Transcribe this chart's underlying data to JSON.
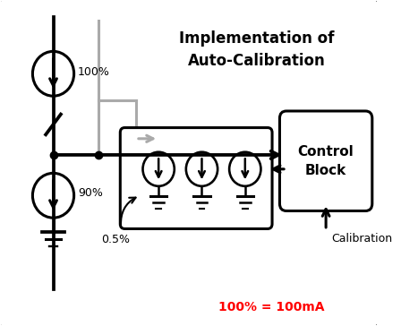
{
  "title": "Implementation of\nAuto-Calibration",
  "note_text": "100% = 100mA",
  "note_color": "#ff0000",
  "bg_color": "#ffffff",
  "border_color": "#000000",
  "line_color": "#000000",
  "gray_color": "#aaaaaa",
  "label_100": "100%",
  "label_90": "90%",
  "label_05": "0.5%",
  "label_cal": "Calibration",
  "cb_text": "Control\nBlock",
  "fig_width": 4.48,
  "fig_height": 3.64,
  "dpi": 100
}
